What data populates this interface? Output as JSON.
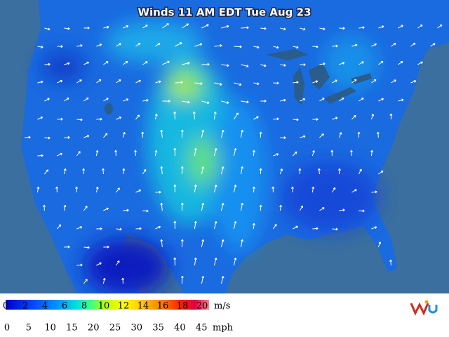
{
  "title": "Winds 11 AM EDT Tue Aug 23",
  "legend": {
    "ms_labels": [
      0,
      2,
      4,
      6,
      8,
      10,
      12,
      14,
      16,
      18,
      20
    ],
    "ms_unit": "m/s",
    "mph_labels": [
      0,
      5,
      10,
      15,
      20,
      25,
      30,
      35,
      40,
      45
    ],
    "mph_unit": "mph"
  }
}
